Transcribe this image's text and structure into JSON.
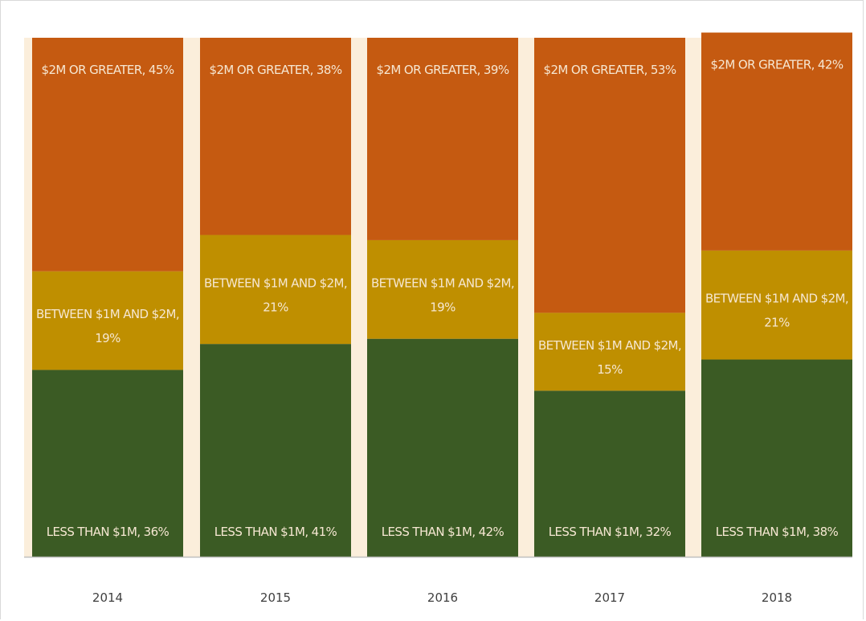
{
  "chart_data": {
    "type": "bar",
    "stacked": true,
    "normalized": true,
    "categories": [
      "2014",
      "2015",
      "2016",
      "2017",
      "2018"
    ],
    "series": [
      {
        "name": "LESS THAN $1M",
        "values": [
          36,
          41,
          42,
          32,
          38
        ],
        "color": "#3b5b24",
        "labels": [
          "LESS THAN $1M, 36%",
          "LESS THAN $1M, 41%",
          "LESS THAN $1M, 42%",
          "LESS THAN $1M, 32%",
          "LESS THAN $1M, 38%"
        ]
      },
      {
        "name": "BETWEEN $1M AND $2M",
        "values": [
          19,
          21,
          19,
          15,
          21
        ],
        "color": "#bf8f00",
        "labels": [
          [
            "BETWEEN $1M AND $2M,",
            "19%"
          ],
          [
            "BETWEEN $1M AND $2M,",
            "21%"
          ],
          [
            "BETWEEN $1M AND $2M,",
            "19%"
          ],
          [
            "BETWEEN $1M AND $2M,",
            "15%"
          ],
          [
            "BETWEEN $1M AND $2M,",
            "21%"
          ]
        ]
      },
      {
        "name": "$2M OR GREATER",
        "values": [
          45,
          38,
          39,
          53,
          42
        ],
        "color": "#c55a11",
        "labels": [
          "$2M OR GREATER, 45%",
          "$2M OR GREATER, 38%",
          "$2M OR GREATER, 39%",
          "$2M OR GREATER, 53%",
          "$2M OR GREATER, 42%"
        ]
      }
    ],
    "plot_background": "#fbeedb",
    "axis_color": "#bfbfbf",
    "ylim": [
      0,
      100
    ],
    "title": "",
    "xlabel": "",
    "ylabel": "",
    "legend": "none",
    "grid": false
  }
}
